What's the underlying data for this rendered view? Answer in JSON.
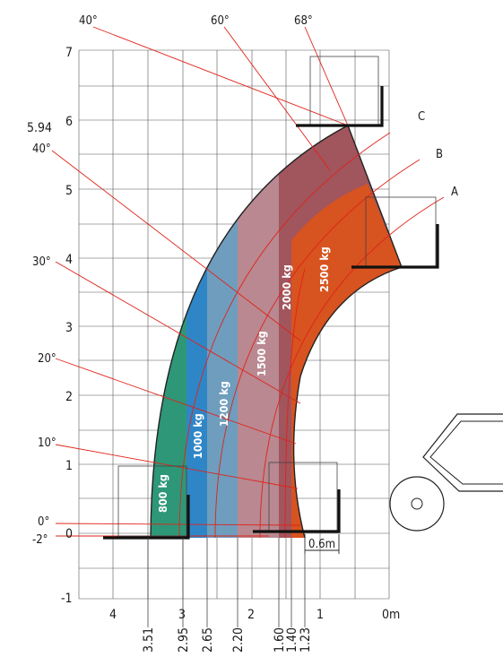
{
  "axes": {
    "y_ticks": [
      "7",
      "6",
      "5",
      "4",
      "3",
      "2",
      "1",
      "0",
      "-1"
    ],
    "y_special": "5.94",
    "x_ticks": [
      "4",
      "3",
      "2",
      "1",
      "0m"
    ],
    "x_reach_labels": [
      "3.51",
      "2.95",
      "2.65",
      "2.20",
      "1.60",
      "1.40",
      "1.23"
    ]
  },
  "angle_labels": {
    "top": [
      "40°",
      "60°",
      "68°"
    ],
    "left": [
      "40°",
      "30°",
      "20°",
      "10°",
      "0°",
      "-2°"
    ]
  },
  "curve_labels": [
    "A",
    "B",
    "C"
  ],
  "load_zones": [
    {
      "label": "800 kg",
      "color": "#2e9778"
    },
    {
      "label": "1000 kg",
      "color": "#2f86c6"
    },
    {
      "label": "1200 kg",
      "color": "#6f9dbd"
    },
    {
      "label": "1500 kg",
      "color": "#b98890"
    },
    {
      "label": "2000 kg",
      "color": "#a1555d"
    },
    {
      "label": "2500 kg",
      "color": "#d7531f"
    }
  ],
  "dimension": "0.6m",
  "colors": {
    "red_line": "#e0231a",
    "grid": "#555555"
  }
}
